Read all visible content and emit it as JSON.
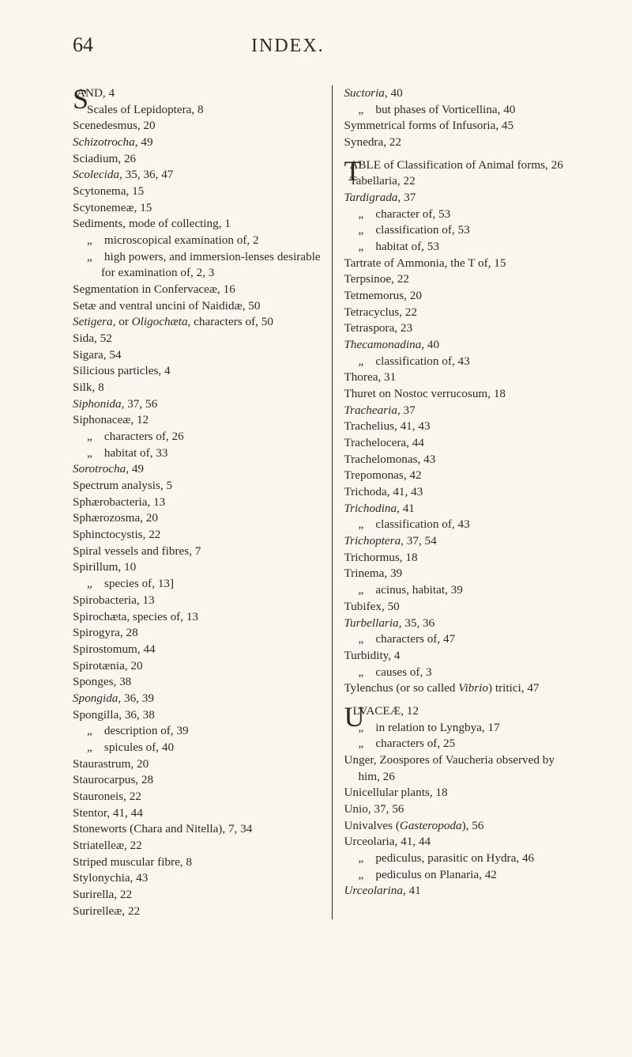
{
  "page_number": "64",
  "header_title": "INDEX.",
  "left_column": [
    {
      "t": "drop",
      "initial": "S",
      "rest": "AND, 4"
    },
    {
      "t": "hang",
      "text": "Scales of Lepidoptera, 8"
    },
    {
      "t": "e",
      "text": "Scenedesmus, 20"
    },
    {
      "t": "e",
      "text": "<i>Schizotrocha</i>, 49"
    },
    {
      "t": "e",
      "text": "Sciadium, 26"
    },
    {
      "t": "e",
      "text": "<i>Scolecida</i>, 35, 36, 47"
    },
    {
      "t": "e",
      "text": "Scytonema, 15"
    },
    {
      "t": "e",
      "text": "Scytonemeæ, 15"
    },
    {
      "t": "e",
      "text": "Sediments, mode of collecting, 1"
    },
    {
      "t": "hang",
      "text": "„ microscopical examination of, 2"
    },
    {
      "t": "hang",
      "text": "„ high powers, and immersion-lenses desirable for examination of, 2, 3"
    },
    {
      "t": "e",
      "text": "Segmentation in Confervaceæ, 16"
    },
    {
      "t": "e",
      "text": "Setæ and ventral uncini of Naididæ, 50"
    },
    {
      "t": "e",
      "text": "<i>Setigera</i>, or <i>Oligochæta</i>, characters of, 50"
    },
    {
      "t": "e",
      "text": "Sida, 52"
    },
    {
      "t": "e",
      "text": "Sigara, 54"
    },
    {
      "t": "e",
      "text": "Silicious particles, 4"
    },
    {
      "t": "e",
      "text": "Silk, 8"
    },
    {
      "t": "e",
      "text": "<i>Siphonida</i>, 37, 56"
    },
    {
      "t": "e",
      "text": "Siphonaceæ, 12"
    },
    {
      "t": "hang",
      "text": "„ characters of, 26"
    },
    {
      "t": "hang",
      "text": "„ habitat of, 33"
    },
    {
      "t": "e",
      "text": "<i>Sorotrocha</i>, 49"
    },
    {
      "t": "e",
      "text": "Spectrum analysis, 5"
    },
    {
      "t": "e",
      "text": "Sphærobacteria, 13"
    },
    {
      "t": "e",
      "text": "Sphærozosma, 20"
    },
    {
      "t": "e",
      "text": "Sphinctocystis, 22"
    },
    {
      "t": "e",
      "text": "Spiral vessels and fibres, 7"
    },
    {
      "t": "e",
      "text": "Spirillum, 10"
    },
    {
      "t": "hang",
      "text": "„ species of, 13]"
    },
    {
      "t": "e",
      "text": "Spirobacteria, 13"
    },
    {
      "t": "e",
      "text": "Spirochæta, species of, 13"
    },
    {
      "t": "e",
      "text": "Spirogyra, 28"
    },
    {
      "t": "e",
      "text": "Spirostomum, 44"
    },
    {
      "t": "e",
      "text": "Spirotænia, 20"
    },
    {
      "t": "e",
      "text": "Sponges, 38"
    },
    {
      "t": "e",
      "text": "<i>Spongida</i>, 36, 39"
    },
    {
      "t": "e",
      "text": "Spongilla, 36, 38"
    },
    {
      "t": "hang",
      "text": "„ description of, 39"
    },
    {
      "t": "hang",
      "text": "„ spicules of, 40"
    },
    {
      "t": "e",
      "text": "Staurastrum, 20"
    },
    {
      "t": "e",
      "text": "Staurocarpus, 28"
    },
    {
      "t": "e",
      "text": "Stauroneis, 22"
    },
    {
      "t": "e",
      "text": "Stentor, 41, 44"
    },
    {
      "t": "e",
      "text": "Stoneworts (Chara and Nitella), 7, 34"
    },
    {
      "t": "e",
      "text": "Striatelleæ, 22"
    },
    {
      "t": "e",
      "text": "Striped muscular fibre, 8"
    },
    {
      "t": "e",
      "text": "Stylonychia, 43"
    },
    {
      "t": "e",
      "text": "Surirella, 22"
    },
    {
      "t": "e",
      "text": "Surirelleæ, 22"
    }
  ],
  "right_column": [
    {
      "t": "e",
      "text": "<i>Suctoria</i>, 40"
    },
    {
      "t": "hang",
      "text": "„ but phases of Vorticellina, 40"
    },
    {
      "t": "e",
      "text": "Symmetrical forms of Infusoria, 45"
    },
    {
      "t": "e",
      "text": "Synedra, 22"
    },
    {
      "t": "sp"
    },
    {
      "t": "drop",
      "initial": "T",
      "rest": "ABLE of Classification of Animal forms, 26"
    },
    {
      "t": "e",
      "text": "Tabellaria, 22"
    },
    {
      "t": "e",
      "text": "<i>Tardigrada</i>, 37"
    },
    {
      "t": "hang",
      "text": "„ character of, 53"
    },
    {
      "t": "hang",
      "text": "„ classification of, 53"
    },
    {
      "t": "hang",
      "text": "„ habitat of, 53"
    },
    {
      "t": "e",
      "text": "Tartrate of Ammonia, the T of, 15"
    },
    {
      "t": "e",
      "text": "Terpsinoe, 22"
    },
    {
      "t": "e",
      "text": "Tetmemorus, 20"
    },
    {
      "t": "e",
      "text": "Tetracyclus, 22"
    },
    {
      "t": "e",
      "text": "Tetraspora, 23"
    },
    {
      "t": "e",
      "text": "<i>Thecamonadina</i>, 40"
    },
    {
      "t": "hang",
      "text": "„ classification of, 43"
    },
    {
      "t": "e",
      "text": "Thorea, 31"
    },
    {
      "t": "e",
      "text": "Thuret on Nostoc verrucosum, 18"
    },
    {
      "t": "e",
      "text": "<i>Trachearia</i>, 37"
    },
    {
      "t": "e",
      "text": "Trachelius, 41, 43"
    },
    {
      "t": "e",
      "text": "Trachelocera, 44"
    },
    {
      "t": "e",
      "text": "Trachelomonas, 43"
    },
    {
      "t": "e",
      "text": "Trepomonas, 42"
    },
    {
      "t": "e",
      "text": "Trichoda, 41, 43"
    },
    {
      "t": "e",
      "text": "<i>Trichodina</i>, 41"
    },
    {
      "t": "hang",
      "text": "„ classification of, 43"
    },
    {
      "t": "e",
      "text": "<i>Trichoptera</i>, 37, 54"
    },
    {
      "t": "e",
      "text": "Trichormus, 18"
    },
    {
      "t": "e",
      "text": "Trinema, 39"
    },
    {
      "t": "hang",
      "text": "„ acinus, habitat, 39"
    },
    {
      "t": "e",
      "text": "Tubifex, 50"
    },
    {
      "t": "e",
      "text": "<i>Turbellaria</i>, 35, 36"
    },
    {
      "t": "hang",
      "text": "„ characters of, 47"
    },
    {
      "t": "e",
      "text": "Turbidity, 4"
    },
    {
      "t": "hang",
      "text": "„ causes of, 3"
    },
    {
      "t": "e",
      "text": "Tylenchus (or so called <i>Vibrio</i>) tritici, 47"
    },
    {
      "t": "sp"
    },
    {
      "t": "drop",
      "initial": "U",
      "rest": "LVACEÆ, 12"
    },
    {
      "t": "hang",
      "text": "„ in relation to Lyngbya, 17"
    },
    {
      "t": "hang",
      "text": "„ characters of, 25"
    },
    {
      "t": "e",
      "text": "Unger, Zoospores of Vaucheria observed by him, 26"
    },
    {
      "t": "e",
      "text": "Unicellular plants, 18"
    },
    {
      "t": "e",
      "text": "Unio, 37, 56"
    },
    {
      "t": "e",
      "text": "Univalves (<i>Gasteropoda</i>), 56"
    },
    {
      "t": "e",
      "text": "Urceolaria, 41, 44"
    },
    {
      "t": "hang",
      "text": "„ pediculus, parasitic on Hydra, 46"
    },
    {
      "t": "hang",
      "text": "„ pediculus on Planaria, 42"
    },
    {
      "t": "e",
      "text": "<i>Urceolarina</i>, 41"
    }
  ]
}
